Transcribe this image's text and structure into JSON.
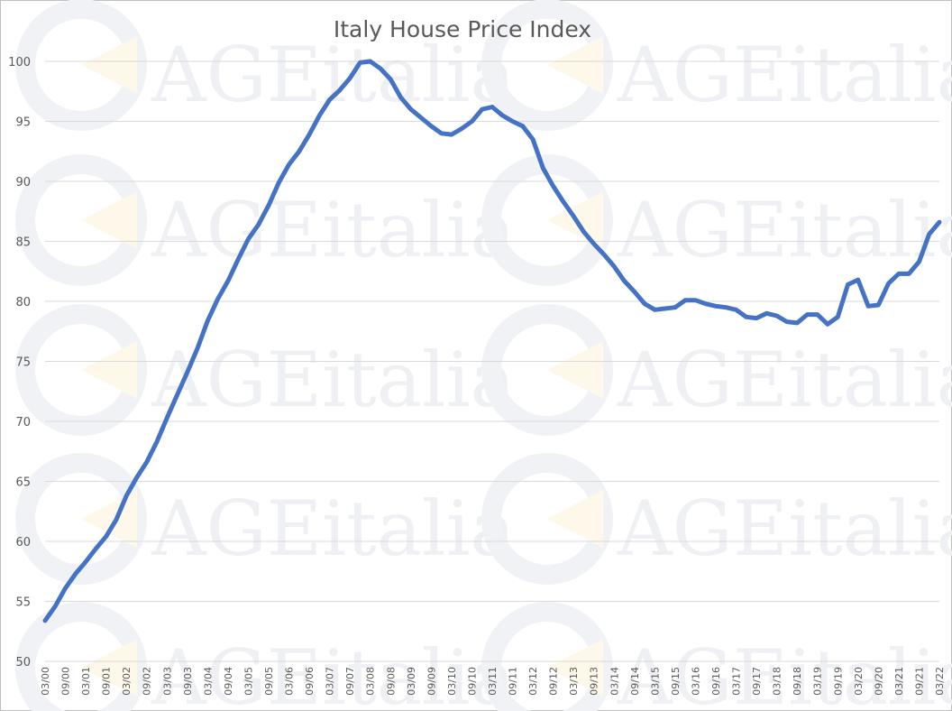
{
  "watermark": "AGEitalia",
  "chart_data": {
    "type": "line",
    "title": "Italy House Price Index",
    "xlabel": "",
    "ylabel": "",
    "ylim": [
      50,
      100
    ],
    "yticks": [
      50,
      55,
      60,
      65,
      70,
      75,
      80,
      85,
      90,
      95,
      100
    ],
    "grid": true,
    "x_tick_labels": [
      "03/00",
      "09/00",
      "03/01",
      "09/01",
      "03/02",
      "09/02",
      "03/03",
      "09/03",
      "03/04",
      "09/04",
      "03/05",
      "09/05",
      "03/06",
      "09/06",
      "03/07",
      "09/07",
      "03/08",
      "09/08",
      "03/09",
      "09/09",
      "03/10",
      "09/10",
      "03/11",
      "09/11",
      "03/12",
      "09/12",
      "03/13",
      "09/13",
      "03/14",
      "09/14",
      "03/15",
      "09/15",
      "03/16",
      "09/16",
      "03/17",
      "09/17",
      "03/18",
      "09/18",
      "03/19",
      "09/19",
      "03/20",
      "09/20",
      "03/21",
      "09/21",
      "03/22"
    ],
    "line_color": "#4472c4",
    "series": [
      {
        "values": [
          53.4,
          54.6,
          56.1,
          57.3,
          58.3,
          59.4,
          60.4,
          61.8,
          63.8,
          65.3,
          66.6,
          68.3,
          70.3,
          72.2,
          74.1,
          76.1,
          78.4,
          80.2,
          81.7,
          83.5,
          85.2,
          86.4,
          88.0,
          89.9,
          91.4,
          92.5,
          93.9,
          95.5,
          96.8,
          97.6,
          98.6,
          99.9,
          100.0,
          99.4,
          98.5,
          97.0,
          96.0,
          95.3,
          94.6,
          94.0,
          93.9,
          94.4,
          95.0,
          96.0,
          96.2,
          95.5,
          95.0,
          94.6,
          93.5,
          91.1,
          89.6,
          88.3,
          87.1,
          85.8,
          84.8,
          83.9,
          82.9,
          81.7,
          80.8,
          79.8,
          79.3,
          79.4,
          79.5,
          80.1,
          80.1,
          79.8,
          79.6,
          79.5,
          79.3,
          78.7,
          78.6,
          79.0,
          78.8,
          78.3,
          78.2,
          78.9,
          78.9,
          78.1,
          78.7,
          81.4,
          81.8,
          79.6,
          79.7,
          81.5,
          82.3,
          82.3,
          83.3,
          85.6,
          86.6
        ]
      }
    ]
  }
}
